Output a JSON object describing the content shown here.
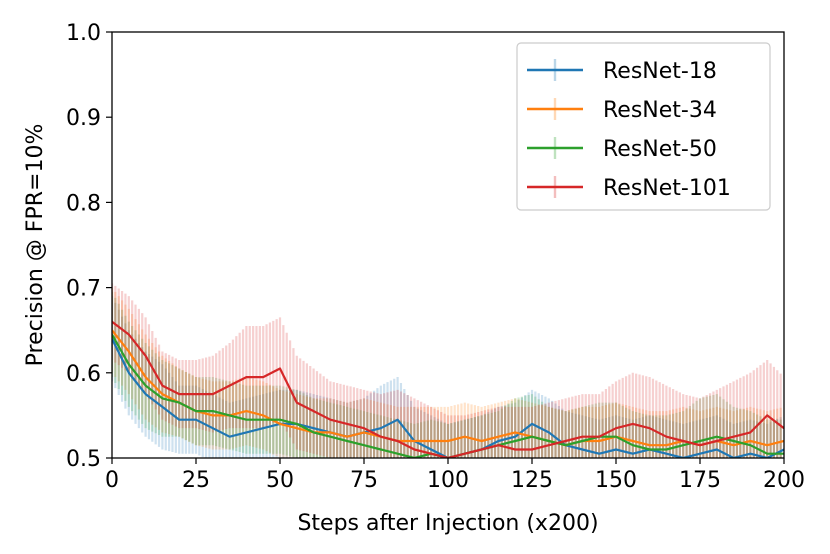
{
  "chart_data": {
    "type": "line",
    "xlabel": "Steps after Injection (x200)",
    "ylabel": "Precision @ FPR=10%",
    "xlim": [
      0,
      200
    ],
    "ylim": [
      0.5,
      1.0
    ],
    "xticks": [
      "0",
      "25",
      "50",
      "75",
      "100",
      "125",
      "150",
      "175",
      "200"
    ],
    "yticks": [
      "0.5",
      "0.6",
      "0.7",
      "0.8",
      "0.9",
      "1.0"
    ],
    "grid": false,
    "legend_position": "top-right",
    "error_bands": true,
    "series": [
      {
        "name": "ResNet-18",
        "color": "#1f77b4",
        "x": [
          0,
          5,
          10,
          15,
          20,
          25,
          30,
          35,
          40,
          45,
          50,
          55,
          60,
          65,
          70,
          75,
          80,
          85,
          90,
          95,
          100,
          105,
          110,
          115,
          120,
          125,
          130,
          135,
          140,
          145,
          150,
          155,
          160,
          165,
          170,
          175,
          180,
          185,
          190,
          195,
          200
        ],
        "y": [
          0.64,
          0.6,
          0.575,
          0.56,
          0.545,
          0.545,
          0.535,
          0.525,
          0.53,
          0.535,
          0.54,
          0.54,
          0.535,
          0.53,
          0.525,
          0.53,
          0.535,
          0.545,
          0.52,
          0.51,
          0.5,
          0.505,
          0.51,
          0.52,
          0.525,
          0.54,
          0.53,
          0.515,
          0.51,
          0.505,
          0.51,
          0.505,
          0.51,
          0.505,
          0.5,
          0.505,
          0.51,
          0.5,
          0.505,
          0.5,
          0.51
        ],
        "err": [
          0.05,
          0.05,
          0.05,
          0.05,
          0.04,
          0.04,
          0.04,
          0.04,
          0.04,
          0.04,
          0.04,
          0.04,
          0.04,
          0.04,
          0.04,
          0.04,
          0.05,
          0.05,
          0.04,
          0.04,
          0.04,
          0.04,
          0.04,
          0.04,
          0.04,
          0.04,
          0.04,
          0.04,
          0.04,
          0.04,
          0.04,
          0.04,
          0.04,
          0.04,
          0.04,
          0.04,
          0.04,
          0.04,
          0.04,
          0.04,
          0.04
        ]
      },
      {
        "name": "ResNet-34",
        "color": "#ff7f0e",
        "x": [
          0,
          5,
          10,
          15,
          20,
          25,
          30,
          35,
          40,
          45,
          50,
          55,
          60,
          65,
          70,
          75,
          80,
          85,
          90,
          95,
          100,
          105,
          110,
          115,
          120,
          125,
          130,
          135,
          140,
          145,
          150,
          155,
          160,
          165,
          170,
          175,
          180,
          185,
          190,
          195,
          200
        ],
        "y": [
          0.65,
          0.625,
          0.595,
          0.575,
          0.565,
          0.555,
          0.55,
          0.55,
          0.555,
          0.55,
          0.54,
          0.535,
          0.53,
          0.53,
          0.525,
          0.53,
          0.525,
          0.52,
          0.52,
          0.52,
          0.52,
          0.525,
          0.52,
          0.525,
          0.53,
          0.525,
          0.52,
          0.515,
          0.52,
          0.52,
          0.525,
          0.52,
          0.515,
          0.515,
          0.52,
          0.515,
          0.52,
          0.515,
          0.52,
          0.515,
          0.52
        ],
        "err": [
          0.05,
          0.05,
          0.05,
          0.045,
          0.04,
          0.04,
          0.04,
          0.04,
          0.04,
          0.04,
          0.04,
          0.04,
          0.04,
          0.04,
          0.04,
          0.04,
          0.04,
          0.04,
          0.04,
          0.04,
          0.04,
          0.04,
          0.04,
          0.04,
          0.04,
          0.04,
          0.04,
          0.04,
          0.04,
          0.04,
          0.04,
          0.04,
          0.04,
          0.04,
          0.04,
          0.04,
          0.04,
          0.04,
          0.04,
          0.04,
          0.04
        ]
      },
      {
        "name": "ResNet-50",
        "color": "#2ca02c",
        "x": [
          0,
          5,
          10,
          15,
          20,
          25,
          30,
          35,
          40,
          45,
          50,
          55,
          60,
          65,
          70,
          75,
          80,
          85,
          90,
          95,
          100,
          105,
          110,
          115,
          120,
          125,
          130,
          135,
          140,
          145,
          150,
          155,
          160,
          165,
          170,
          175,
          180,
          185,
          190,
          195,
          200
        ],
        "y": [
          0.645,
          0.61,
          0.585,
          0.57,
          0.565,
          0.555,
          0.555,
          0.55,
          0.545,
          0.545,
          0.545,
          0.54,
          0.53,
          0.525,
          0.52,
          0.515,
          0.51,
          0.505,
          0.5,
          0.505,
          0.5,
          0.505,
          0.51,
          0.515,
          0.52,
          0.525,
          0.52,
          0.515,
          0.52,
          0.525,
          0.525,
          0.515,
          0.51,
          0.51,
          0.515,
          0.52,
          0.525,
          0.52,
          0.515,
          0.505,
          0.505
        ],
        "err": [
          0.05,
          0.05,
          0.05,
          0.045,
          0.04,
          0.04,
          0.04,
          0.04,
          0.04,
          0.04,
          0.04,
          0.04,
          0.04,
          0.04,
          0.04,
          0.04,
          0.04,
          0.04,
          0.04,
          0.04,
          0.04,
          0.04,
          0.04,
          0.04,
          0.05,
          0.05,
          0.04,
          0.04,
          0.04,
          0.04,
          0.04,
          0.04,
          0.04,
          0.04,
          0.04,
          0.05,
          0.05,
          0.04,
          0.04,
          0.04,
          0.04
        ]
      },
      {
        "name": "ResNet-101",
        "color": "#d62728",
        "x": [
          0,
          5,
          10,
          15,
          20,
          25,
          30,
          35,
          40,
          45,
          50,
          55,
          60,
          65,
          70,
          75,
          80,
          85,
          90,
          95,
          100,
          105,
          110,
          115,
          120,
          125,
          130,
          135,
          140,
          145,
          150,
          155,
          160,
          165,
          170,
          175,
          180,
          185,
          190,
          195,
          200
        ],
        "y": [
          0.66,
          0.645,
          0.62,
          0.585,
          0.575,
          0.575,
          0.575,
          0.585,
          0.595,
          0.595,
          0.605,
          0.565,
          0.555,
          0.545,
          0.54,
          0.535,
          0.525,
          0.52,
          0.51,
          0.505,
          0.5,
          0.505,
          0.51,
          0.515,
          0.51,
          0.51,
          0.515,
          0.52,
          0.525,
          0.525,
          0.535,
          0.54,
          0.535,
          0.525,
          0.52,
          0.515,
          0.52,
          0.525,
          0.53,
          0.55,
          0.535
        ],
        "err": [
          0.045,
          0.045,
          0.045,
          0.04,
          0.04,
          0.04,
          0.045,
          0.05,
          0.06,
          0.06,
          0.06,
          0.055,
          0.05,
          0.045,
          0.045,
          0.045,
          0.05,
          0.06,
          0.06,
          0.055,
          0.05,
          0.045,
          0.045,
          0.045,
          0.05,
          0.05,
          0.05,
          0.05,
          0.05,
          0.05,
          0.055,
          0.06,
          0.06,
          0.06,
          0.055,
          0.055,
          0.06,
          0.065,
          0.07,
          0.065,
          0.06
        ]
      }
    ]
  }
}
